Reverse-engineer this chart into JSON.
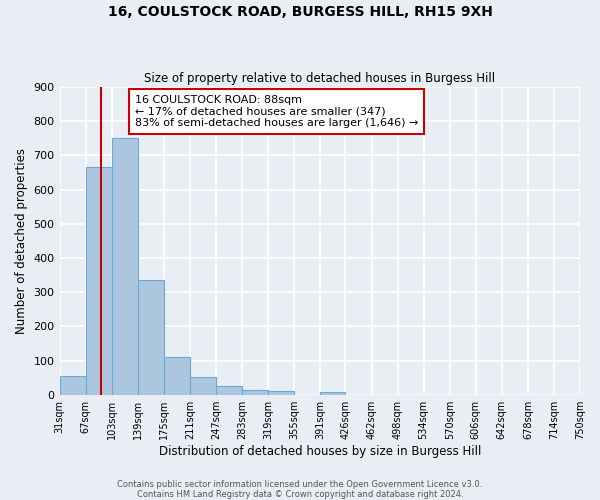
{
  "title1": "16, COULSTOCK ROAD, BURGESS HILL, RH15 9XH",
  "title2": "Size of property relative to detached houses in Burgess Hill",
  "xlabel": "Distribution of detached houses by size in Burgess Hill",
  "ylabel": "Number of detached properties",
  "bin_edges": [
    31,
    67,
    103,
    139,
    175,
    211,
    247,
    283,
    319,
    355,
    391,
    426,
    462,
    498,
    534,
    570,
    606,
    642,
    678,
    714,
    750
  ],
  "bar_heights": [
    55,
    665,
    750,
    337,
    110,
    52,
    26,
    14,
    10,
    0,
    9,
    0,
    0,
    0,
    0,
    0,
    0,
    0,
    0,
    0
  ],
  "bar_color": "#adc6e0",
  "bar_edge_color": "#6aaad4",
  "property_size": 88,
  "red_line_color": "#cc0000",
  "ylim": [
    0,
    900
  ],
  "yticks": [
    0,
    100,
    200,
    300,
    400,
    500,
    600,
    700,
    800,
    900
  ],
  "annotation_title": "16 COULSTOCK ROAD: 88sqm",
  "annotation_line1": "← 17% of detached houses are smaller (347)",
  "annotation_line2": "83% of semi-detached houses are larger (1,646) →",
  "annotation_box_color": "#ffffff",
  "annotation_box_edge": "#cc0000",
  "footer1": "Contains HM Land Registry data © Crown copyright and database right 2024.",
  "footer2": "Contains public sector information licensed under the Open Government Licence v3.0.",
  "bg_color": "#e8eef4",
  "plot_bg_color": "#e8eef4",
  "grid_color": "#ffffff"
}
